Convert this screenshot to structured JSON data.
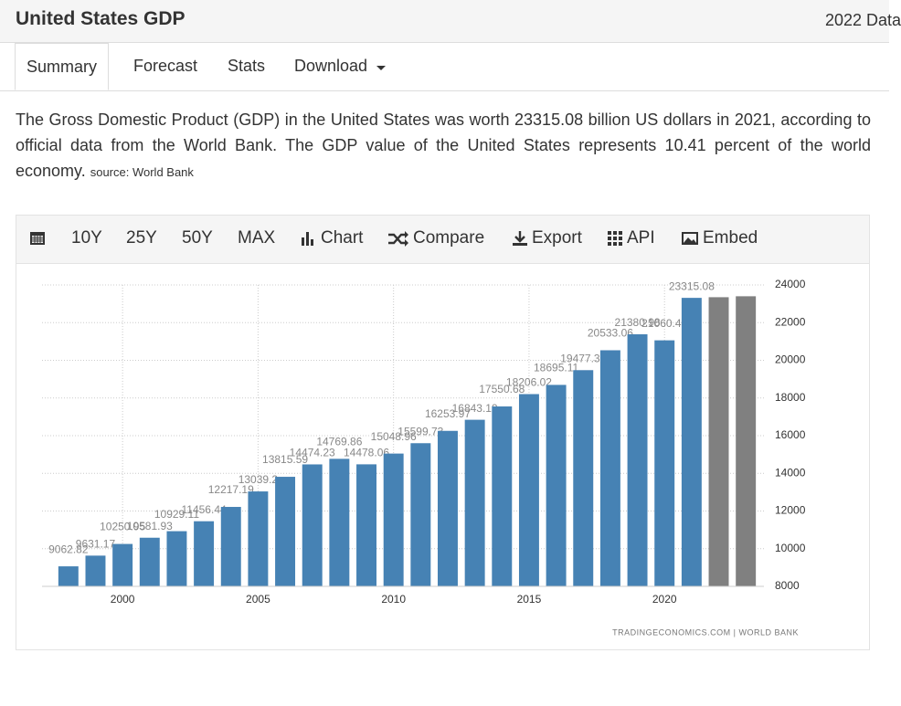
{
  "header": {
    "title": "United States GDP",
    "right_text": "2022 Data"
  },
  "tabs": [
    "Summary",
    "Forecast",
    "Stats",
    "Download"
  ],
  "summary": {
    "text": "The Gross Domestic Product (GDP) in the United States was worth 23315.08 billion US dollars in 2021, according to official data from the World Bank. The GDP value of the United States represents 10.41 percent of the world economy.",
    "source": "source: World Bank"
  },
  "toolbar": [
    "10Y",
    "25Y",
    "50Y",
    "MAX",
    "Chart",
    "Compare",
    "Export",
    "API",
    "Embed"
  ],
  "chart_data": {
    "type": "bar",
    "x": [
      1998,
      1999,
      2000,
      2001,
      2002,
      2003,
      2004,
      2005,
      2006,
      2007,
      2008,
      2009,
      2010,
      2011,
      2012,
      2013,
      2014,
      2015,
      2016,
      2017,
      2018,
      2019,
      2020,
      2021,
      2022,
      2023
    ],
    "series": [
      {
        "color": "#4682b4",
        "values": [
          9062.82,
          9631.17,
          10250.95,
          10581.93,
          10929.11,
          11456.44,
          12217.19,
          13039.2,
          13815.59,
          14474.23,
          14769.86,
          14478.06,
          15048.96,
          15599.73,
          16253.97,
          16843.19,
          17550.68,
          18206.02,
          18695.11,
          19477.34,
          20533.06,
          21380.98,
          21060.47,
          23315.08,
          null,
          null
        ]
      },
      {
        "color": "#808080",
        "values": [
          null,
          null,
          null,
          null,
          null,
          null,
          null,
          null,
          null,
          null,
          null,
          null,
          null,
          null,
          null,
          null,
          null,
          null,
          null,
          null,
          null,
          null,
          null,
          null,
          23350,
          23400
        ]
      }
    ],
    "xlim": [
      1997.5,
      2023.5
    ],
    "xticks": [
      2000,
      2005,
      2010,
      2015,
      2020
    ],
    "ylim": [
      8000,
      24000
    ],
    "yticks": [
      8000,
      10000,
      12000,
      14000,
      16000,
      18000,
      20000,
      22000,
      24000
    ],
    "grid": true,
    "credit": "TRADINGECONOMICS.COM | WORLD BANK"
  }
}
